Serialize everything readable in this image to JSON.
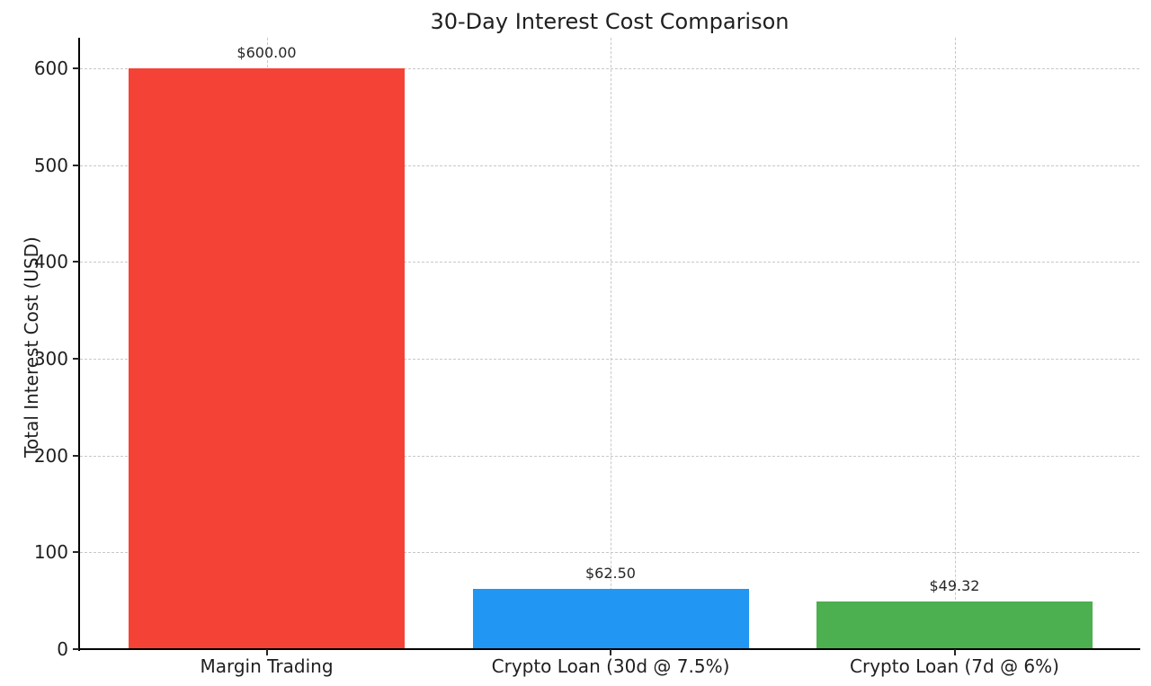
{
  "chart_data": {
    "type": "bar",
    "title": "30-Day Interest Cost Comparison",
    "xlabel": "",
    "ylabel": "Total Interest Cost (USD)",
    "categories": [
      "Margin Trading",
      "Crypto Loan (30d @ 7.5%)",
      "Crypto Loan (7d @ 6%)"
    ],
    "values": [
      600.0,
      62.5,
      49.32
    ],
    "bar_labels": [
      "$600.00",
      "$62.50",
      "$49.32"
    ],
    "bar_colors": [
      "#f44336",
      "#2196f3",
      "#4caf50"
    ],
    "yticks": [
      0,
      100,
      200,
      300,
      400,
      500,
      600
    ],
    "ylim": [
      0,
      631.6
    ],
    "grid": "dashed both-axes",
    "grid_color": "#c8c8c8",
    "legend_position": "none",
    "background_color": "#ffffff"
  }
}
